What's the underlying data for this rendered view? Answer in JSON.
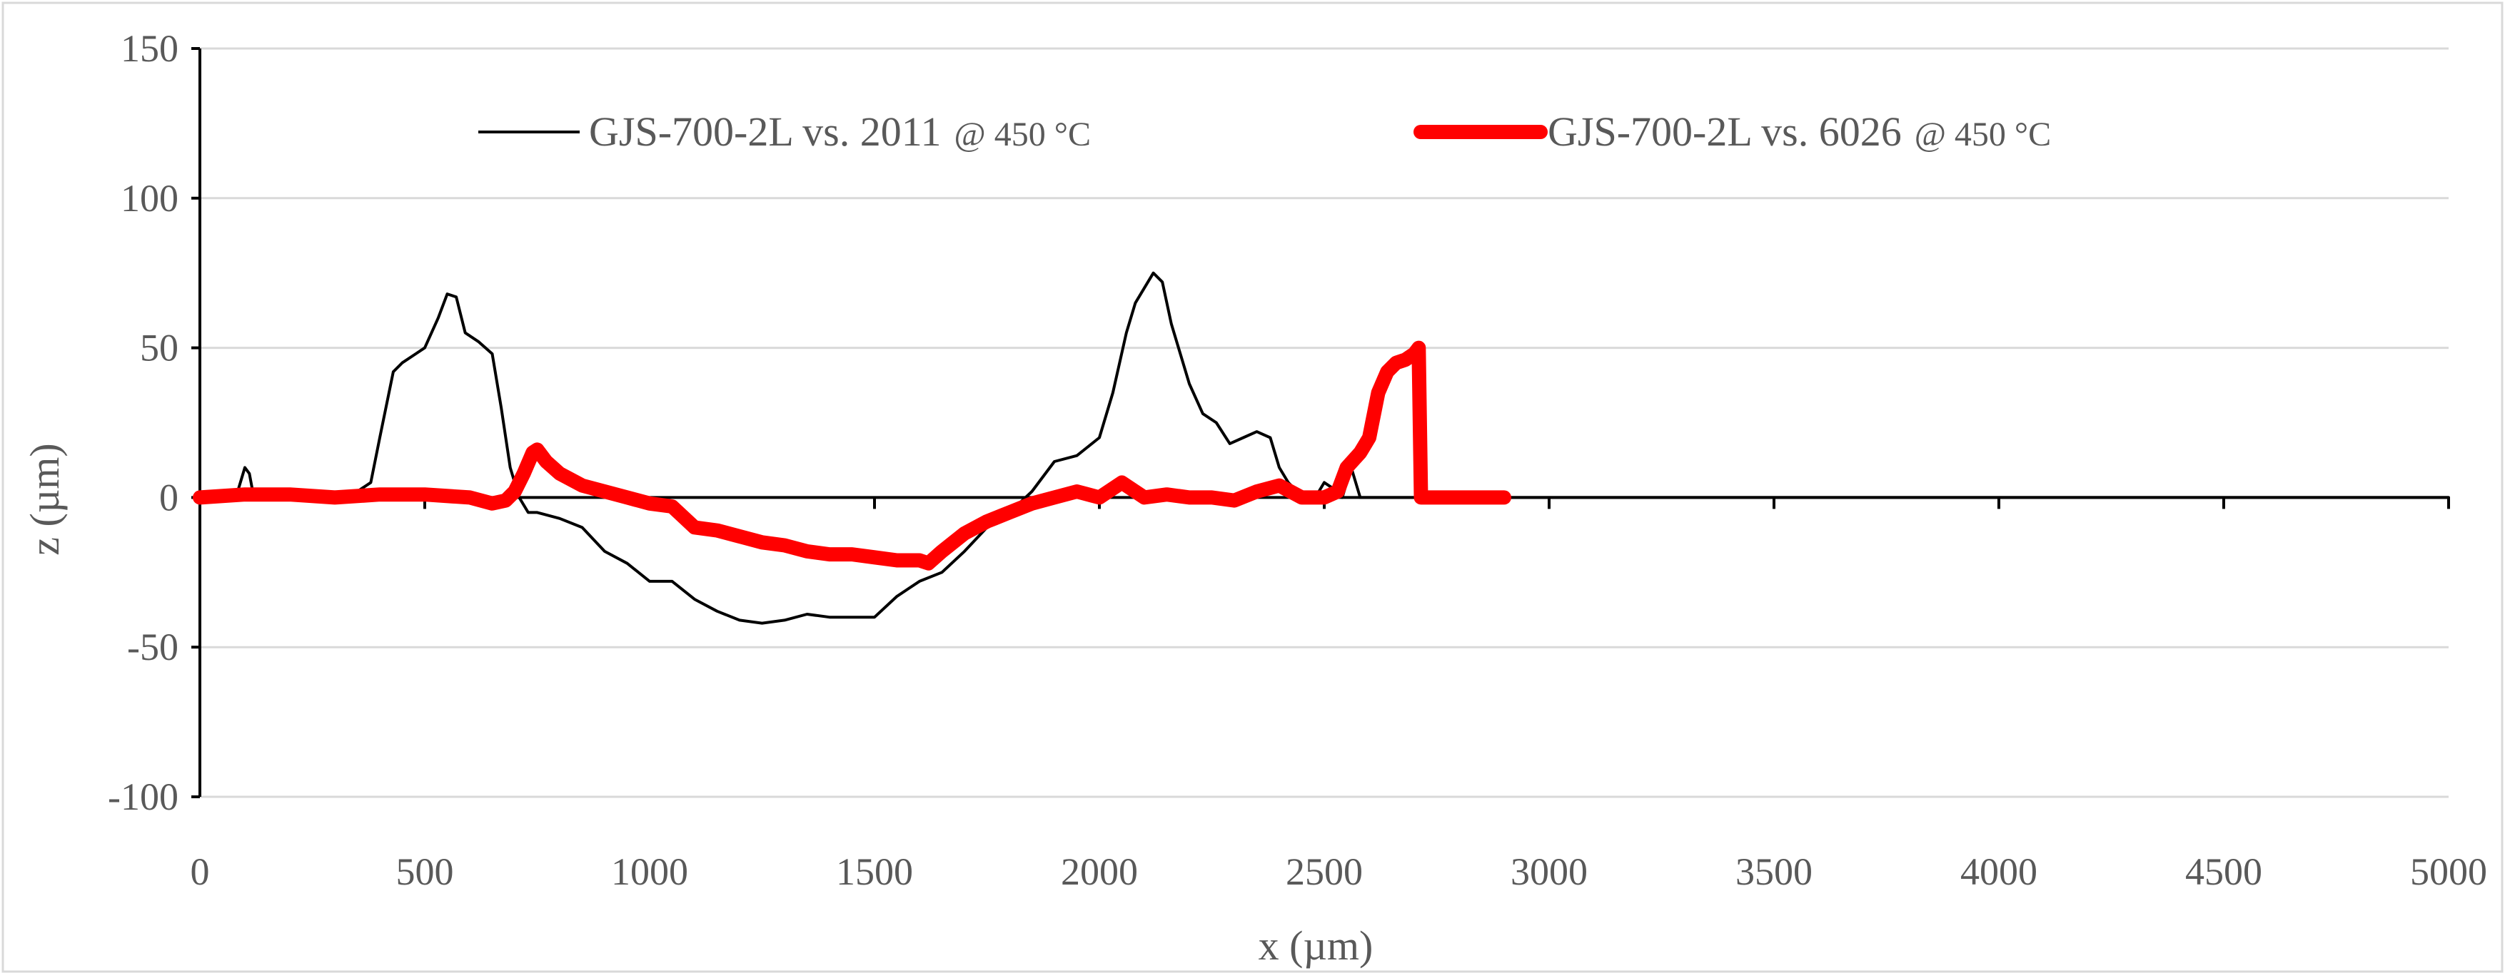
{
  "chart_data": {
    "type": "line",
    "title": "",
    "xlabel": "x (µm)",
    "ylabel": "z (µm)",
    "xlim": [
      0,
      5000
    ],
    "ylim": [
      -100,
      150
    ],
    "x_ticks": [
      0,
      500,
      1000,
      1500,
      2000,
      2500,
      3000,
      3500,
      4000,
      4500,
      5000
    ],
    "y_ticks": [
      -100,
      -50,
      0,
      50,
      100,
      150
    ],
    "x_tick_labels": [
      "0",
      "500",
      "1000",
      "1500",
      "2000",
      "2500",
      "3000",
      "3500",
      "4000",
      "4500",
      "5000"
    ],
    "y_tick_labels": [
      "-100",
      "-50",
      "0",
      "50",
      "100",
      "150"
    ],
    "grid": "horizontal",
    "legend_position": "top",
    "series": [
      {
        "name": "GJS-700-2L vs. 2011",
        "name_suffix": "@ 450 °C",
        "color": "#000000",
        "x": [
          0,
          80,
          100,
          110,
          120,
          200,
          300,
          350,
          380,
          400,
          430,
          450,
          480,
          500,
          530,
          550,
          570,
          590,
          620,
          650,
          670,
          690,
          710,
          730,
          750,
          800,
          850,
          900,
          950,
          1000,
          1050,
          1100,
          1150,
          1200,
          1250,
          1300,
          1350,
          1400,
          1450,
          1500,
          1550,
          1600,
          1650,
          1700,
          1750,
          1800,
          1850,
          1900,
          1950,
          2000,
          2030,
          2060,
          2080,
          2100,
          2120,
          2140,
          2160,
          2180,
          2200,
          2230,
          2260,
          2290,
          2320,
          2350,
          2380,
          2400,
          2420,
          2440,
          2460,
          2480,
          2500,
          2520,
          2540,
          2560,
          2580,
          2600,
          3000,
          5000
        ],
        "y": [
          0,
          0,
          10,
          8,
          0,
          0,
          0,
          2,
          5,
          20,
          42,
          45,
          48,
          50,
          60,
          68,
          67,
          55,
          52,
          48,
          30,
          10,
          0,
          -5,
          -5,
          -7,
          -10,
          -18,
          -22,
          -28,
          -28,
          -34,
          -38,
          -41,
          -42,
          -41,
          -39,
          -40,
          -40,
          -40,
          -33,
          -28,
          -25,
          -18,
          -10,
          -5,
          2,
          12,
          14,
          20,
          35,
          55,
          65,
          70,
          75,
          72,
          58,
          48,
          38,
          28,
          25,
          18,
          20,
          22,
          20,
          10,
          5,
          2,
          0,
          0,
          5,
          3,
          0,
          10,
          0,
          0,
          0,
          0
        ]
      },
      {
        "name": "GJS-700-2L vs. 6026",
        "name_suffix": "@ 450 °C",
        "color": "#ff0000",
        "x": [
          0,
          100,
          200,
          300,
          400,
          500,
          600,
          650,
          680,
          700,
          720,
          740,
          750,
          770,
          800,
          850,
          900,
          950,
          1000,
          1050,
          1100,
          1150,
          1200,
          1250,
          1300,
          1350,
          1400,
          1450,
          1500,
          1550,
          1600,
          1620,
          1650,
          1700,
          1750,
          1800,
          1850,
          1900,
          1950,
          2000,
          2050,
          2100,
          2150,
          2200,
          2250,
          2300,
          2350,
          2400,
          2450,
          2500,
          2530,
          2550,
          2580,
          2600,
          2620,
          2640,
          2660,
          2680,
          2700,
          2710,
          2715,
          2730,
          2800,
          2900
        ],
        "y": [
          0,
          1,
          1,
          0,
          1,
          1,
          0,
          -2,
          -1,
          2,
          8,
          15,
          16,
          12,
          8,
          4,
          2,
          0,
          -2,
          -3,
          -10,
          -11,
          -13,
          -15,
          -16,
          -18,
          -19,
          -19,
          -20,
          -21,
          -21,
          -22,
          -18,
          -12,
          -8,
          -5,
          -2,
          0,
          2,
          0,
          5,
          0,
          1,
          0,
          0,
          -1,
          2,
          4,
          0,
          0,
          2,
          10,
          15,
          20,
          35,
          42,
          45,
          46,
          48,
          50,
          0,
          0,
          0,
          0
        ]
      }
    ]
  }
}
